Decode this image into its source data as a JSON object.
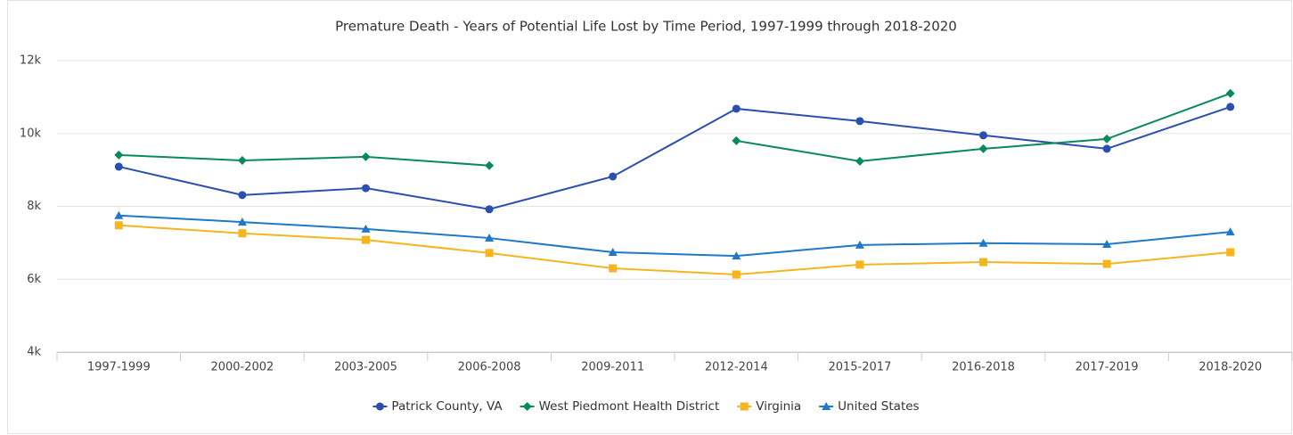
{
  "chart_data": {
    "type": "line",
    "title": "Premature Death - Years of Potential Life Lost by Time Period, 1997-1999 through 2018-2020",
    "categories": [
      "1997-1999",
      "2000-2002",
      "2003-2005",
      "2006-2008",
      "2009-2011",
      "2012-2014",
      "2015-2017",
      "2016-2018",
      "2017-2019",
      "2018-2020"
    ],
    "series": [
      {
        "name": "Patrick County, VA",
        "color": "#2b4fae",
        "marker": "circle",
        "values": [
          9090,
          8310,
          8500,
          7920,
          8820,
          10680,
          10340,
          9950,
          9580,
          10730
        ]
      },
      {
        "name": "West Piedmont Health District",
        "color": "#0a8a5c",
        "marker": "diamond",
        "values": [
          9410,
          9260,
          9360,
          9120,
          null,
          9800,
          9240,
          9580,
          9850,
          11100
        ]
      },
      {
        "name": "Virginia",
        "color": "#f6b51e",
        "marker": "square",
        "values": [
          7480,
          7260,
          7080,
          6720,
          6300,
          6130,
          6400,
          6470,
          6420,
          6740
        ]
      },
      {
        "name": "United States",
        "color": "#1f78c8",
        "marker": "triangle",
        "values": [
          7750,
          7570,
          7380,
          7130,
          6740,
          6640,
          6940,
          6990,
          6960,
          7300
        ]
      }
    ],
    "ylim": [
      4000,
      12000
    ],
    "yticks": [
      {
        "value": 4000,
        "label": "4k"
      },
      {
        "value": 6000,
        "label": "6k"
      },
      {
        "value": 8000,
        "label": "8k"
      },
      {
        "value": 10000,
        "label": "10k"
      },
      {
        "value": 12000,
        "label": "12k"
      }
    ],
    "grid": true,
    "legend": "bottom"
  }
}
